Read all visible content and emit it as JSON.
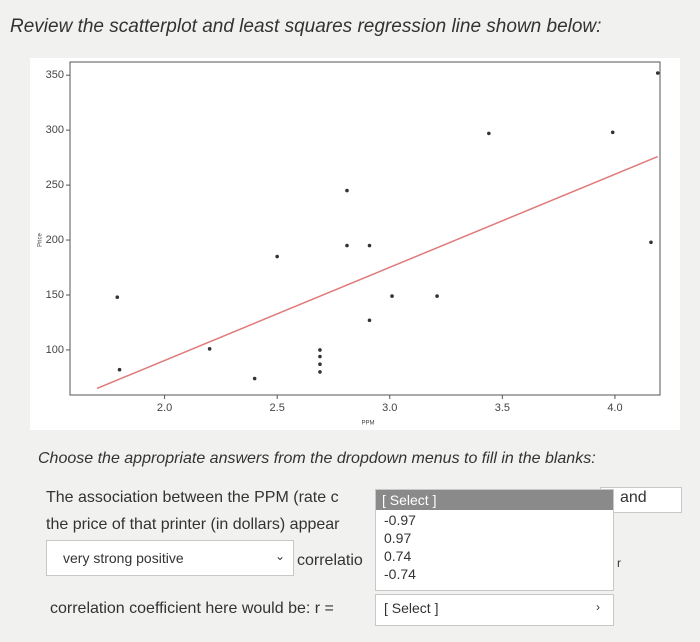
{
  "question": "Review the scatterplot and least squares regression line shown below:",
  "chart_data": {
    "type": "scatter",
    "xlabel": "PPM",
    "ylabel": "Price",
    "x": [
      1.8,
      1.79,
      2.2,
      2.4,
      2.5,
      2.69,
      2.69,
      2.69,
      2.69,
      2.81,
      2.81,
      2.91,
      2.91,
      3.01,
      3.21,
      3.44,
      3.99,
      4.19,
      4.16
    ],
    "values": [
      82,
      148,
      101,
      74,
      185,
      100,
      94,
      87,
      80,
      245,
      195,
      195,
      127,
      149,
      149,
      297,
      298,
      352,
      198
    ],
    "color": "#333333",
    "fit_line": {
      "x": [
        1.7,
        4.19
      ],
      "y": [
        65,
        276
      ],
      "color": "#e07a7a"
    },
    "xlim": [
      1.58,
      4.2
    ],
    "ylim": [
      59,
      362
    ],
    "xticks": [
      {
        "value": 2,
        "label": "2.0"
      },
      {
        "value": 2.5,
        "label": "2.5"
      },
      {
        "value": 3,
        "label": "3.0"
      },
      {
        "value": 3.5,
        "label": "3.5"
      },
      {
        "value": 4,
        "label": "4.0"
      }
    ],
    "yticks": [
      100,
      150,
      200,
      250,
      300,
      350
    ]
  },
  "instructions": "Choose the appropriate answers from the dropdown menus to fill in the blanks:",
  "sentence_1a": "The association between the PPM (rate c",
  "sentence_1b": "and",
  "sentence_2": "the price of that printer (in dollars) appear",
  "dropdown_open": {
    "placeholder": "[ Select ]",
    "options": [
      "-0.97",
      "0.97",
      "0.74",
      "-0.74"
    ]
  },
  "dropdown_strength": "very strong positive",
  "sentence_3a": "correlatio",
  "sentence_3b": "r",
  "sentence_4": "correlation coefficient here would be: r =",
  "dropdown_r": "[ Select ]"
}
